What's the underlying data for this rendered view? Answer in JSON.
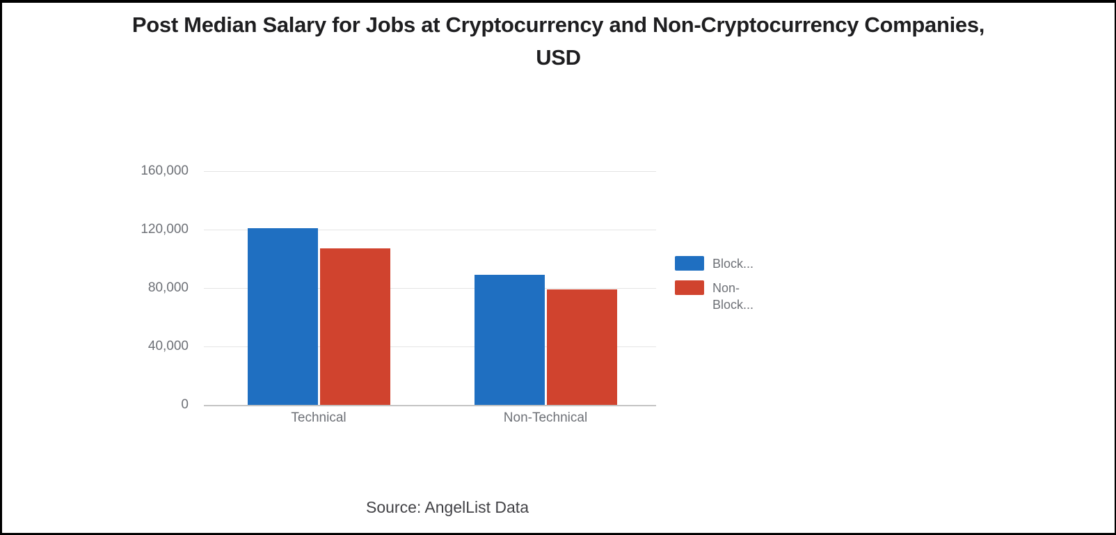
{
  "page": {
    "title_lines": [
      "Post Median Salary for Jobs at Cryptocurrency and Non-Cryptocurrency Companies,",
      "USD"
    ]
  },
  "colors": {
    "series_blue": "#1f6fc1",
    "series_red": "#d0432e",
    "gridline": "#e4e4e4",
    "axis_line": "#c4c4c4",
    "axis_text": "#6d7076",
    "title_text": "#1e1e20",
    "source_text": "#424246",
    "background": "#ffffff",
    "letterbox": "#000000"
  },
  "chart_data": {
    "type": "bar",
    "title": "Post Median Salary for Jobs at Cryptocurrency and Non-Cryptocurrency Companies, USD",
    "categories": [
      "Technical",
      "Non-Technical"
    ],
    "series": [
      {
        "name": "Block...",
        "color": "#1f6fc1",
        "values": [
          121000,
          89000
        ]
      },
      {
        "name": "Non-Block...",
        "color": "#d0432e",
        "values": [
          107000,
          79000
        ]
      }
    ],
    "ylim": [
      0,
      160000
    ],
    "ytick_interval": 40000,
    "ytick_labels": [
      "0",
      "40,000",
      "80,000",
      "120,000",
      "160,000"
    ],
    "xlabel": "",
    "ylabel": "",
    "grid": true,
    "legend_position": "right",
    "source": "Source: AngelList Data"
  }
}
